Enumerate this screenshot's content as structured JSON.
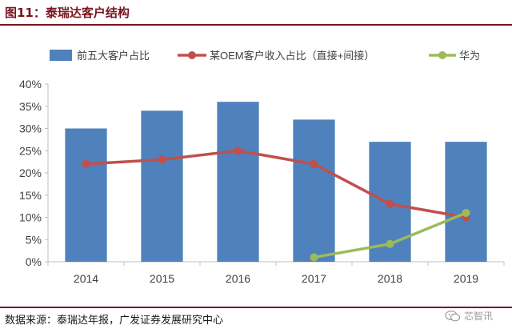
{
  "header": {
    "title": "图11：泰瑞达客户结构"
  },
  "footer": {
    "source": "数据来源：泰瑞达年报，广发证券发展研究中心",
    "watermark": "芯智讯",
    "watermark_icon": "wechat-icon"
  },
  "colors": {
    "bar": "#4f81bd",
    "oem_line": "#c0504d",
    "huawei_line": "#9bbb59",
    "axis": "#bfbfbf",
    "text": "#404040",
    "brand": "#7a1420"
  },
  "chart_data": {
    "type": "bar",
    "categories": [
      "2014",
      "2015",
      "2016",
      "2017",
      "2018",
      "2019"
    ],
    "series": [
      {
        "name": "前五大客户占比",
        "type": "bar",
        "values": [
          30,
          34,
          36,
          32,
          27,
          27
        ]
      },
      {
        "name": "某OEM客户收入占比（直接+间接）",
        "type": "line",
        "values": [
          22,
          23,
          25,
          22,
          13,
          10
        ]
      },
      {
        "name": "华为",
        "type": "line",
        "values": [
          null,
          null,
          null,
          1,
          4,
          11
        ]
      }
    ],
    "unit": "%",
    "ylim": [
      0,
      40
    ],
    "yticks": [
      "0%",
      "5%",
      "10%",
      "15%",
      "20%",
      "25%",
      "30%",
      "35%",
      "40%"
    ],
    "grid": false,
    "legend_position": "top"
  }
}
